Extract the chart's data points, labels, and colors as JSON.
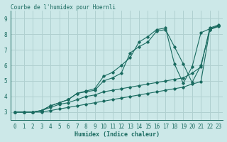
{
  "title": "Courbe de l'humidex pour Hoernli",
  "xlabel": "Humidex (Indice chaleur)",
  "xlim": [
    -0.5,
    23.5
  ],
  "ylim": [
    2.5,
    9.5
  ],
  "yticks": [
    3,
    4,
    5,
    6,
    7,
    8,
    9
  ],
  "xticks": [
    0,
    1,
    2,
    3,
    4,
    5,
    6,
    7,
    8,
    9,
    10,
    11,
    12,
    13,
    14,
    15,
    16,
    17,
    18,
    19,
    20,
    21,
    22,
    23
  ],
  "bg_color": "#cce8e8",
  "line_color": "#1a6b60",
  "grid_color": "#b0d0d0",
  "lines": [
    {
      "x": [
        0,
        1,
        2,
        3,
        4,
        5,
        6,
        7,
        8,
        9,
        10,
        11,
        12,
        13,
        14,
        15,
        16,
        17,
        18,
        19,
        20,
        21,
        22,
        23
      ],
      "y": [
        3.0,
        3.0,
        3.0,
        3.0,
        3.1,
        3.2,
        3.3,
        3.4,
        3.5,
        3.6,
        3.7,
        3.8,
        3.9,
        4.0,
        4.1,
        4.2,
        4.3,
        4.4,
        4.5,
        4.6,
        4.8,
        4.95,
        8.3,
        8.5
      ]
    },
    {
      "x": [
        0,
        1,
        2,
        3,
        4,
        5,
        6,
        7,
        8,
        9,
        10,
        11,
        12,
        13,
        14,
        15,
        16,
        17,
        18,
        19,
        20,
        21,
        22,
        23
      ],
      "y": [
        3.0,
        3.0,
        3.0,
        3.1,
        3.3,
        3.5,
        3.6,
        3.8,
        4.0,
        4.1,
        4.3,
        4.4,
        4.5,
        4.6,
        4.7,
        4.8,
        4.9,
        5.0,
        5.1,
        5.2,
        5.5,
        5.9,
        8.4,
        8.6
      ]
    },
    {
      "x": [
        0,
        1,
        2,
        3,
        4,
        5,
        6,
        7,
        8,
        9,
        10,
        11,
        12,
        13,
        14,
        15,
        16,
        17,
        18,
        19,
        20,
        21,
        22,
        23
      ],
      "y": [
        3.0,
        3.0,
        3.0,
        3.1,
        3.4,
        3.6,
        3.8,
        4.2,
        4.3,
        4.4,
        5.0,
        5.2,
        5.5,
        6.8,
        7.2,
        7.5,
        8.2,
        8.3,
        7.2,
        6.1,
        4.9,
        6.0,
        8.3,
        8.55
      ]
    },
    {
      "x": [
        0,
        1,
        2,
        3,
        4,
        5,
        6,
        7,
        8,
        9,
        10,
        11,
        12,
        13,
        14,
        15,
        16,
        17,
        18,
        19,
        20,
        21,
        22,
        23
      ],
      "y": [
        3.0,
        3.0,
        3.0,
        3.1,
        3.4,
        3.6,
        3.8,
        4.2,
        4.35,
        4.5,
        5.3,
        5.55,
        6.0,
        6.5,
        7.5,
        7.85,
        8.3,
        8.4,
        6.1,
        4.85,
        5.9,
        8.1,
        8.35,
        8.55
      ]
    }
  ]
}
